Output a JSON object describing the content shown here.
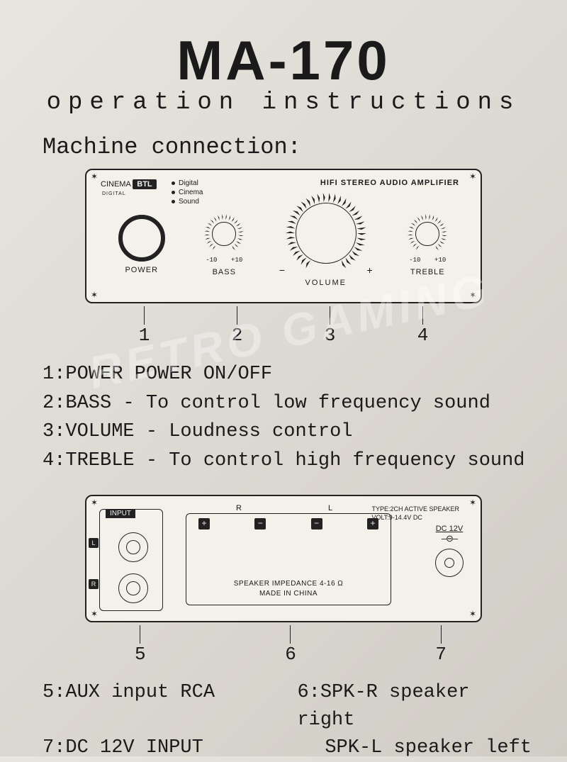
{
  "title": "MA-170",
  "subtitle": "operation  instructions",
  "section_head": "Machine connection:",
  "front": {
    "brand_cinema": "CINEMA",
    "brand_btl": "BTL",
    "brand_digital": "DIGITAL",
    "dcs_1": "Digital",
    "dcs_2": "Cinema",
    "dcs_3": "Sound",
    "hifi": "HIFI STEREO AUDIO AMPLIFIER",
    "power_label": "POWER",
    "bass_label": "BASS",
    "bass_lo": "-10",
    "bass_hi": "+10",
    "volume_label": "VOLUME",
    "vol_minus": "−",
    "vol_plus": "+",
    "treble_label": "TREBLE",
    "treble_lo": "-10",
    "treble_hi": "+10",
    "n1": "1",
    "n2": "2",
    "n3": "3",
    "n4": "4"
  },
  "defs": {
    "l1": "1:POWER  POWER  ON/OFF",
    "l2": "2:BASS - To control low frequency sound",
    "l3": "3:VOLUME - Loudness control",
    "l4": "4:TREBLE - To control high frequency sound"
  },
  "rear": {
    "input_label": "INPUT",
    "L": "L",
    "R": "R",
    "type": "TYPE:2CH ACTIVE SPEAKER",
    "volt": "VOLT:9-14.4V DC",
    "term_p": "+",
    "term_m": "−",
    "rl_r": "R",
    "rl_l": "L",
    "imp": "SPEAKER IMPEDANCE 4-16 Ω",
    "made": "MADE IN CHINA",
    "dc_label": "DC 12V",
    "dc_sym": "–⊖–",
    "n5": "5",
    "n6": "6",
    "n7": "7"
  },
  "defs2": {
    "r1c1": "5:AUX input  RCA",
    "r1c2": "6:SPK-R speaker right",
    "r2c1": "7:DC 12V INPUT",
    "r2c2": "  SPK-L speaker left"
  },
  "watermark": "RETRO GAMING",
  "colors": {
    "fg": "#1a1a1a",
    "panel": "#f3f1ea",
    "bg1": "#e8e5df"
  }
}
